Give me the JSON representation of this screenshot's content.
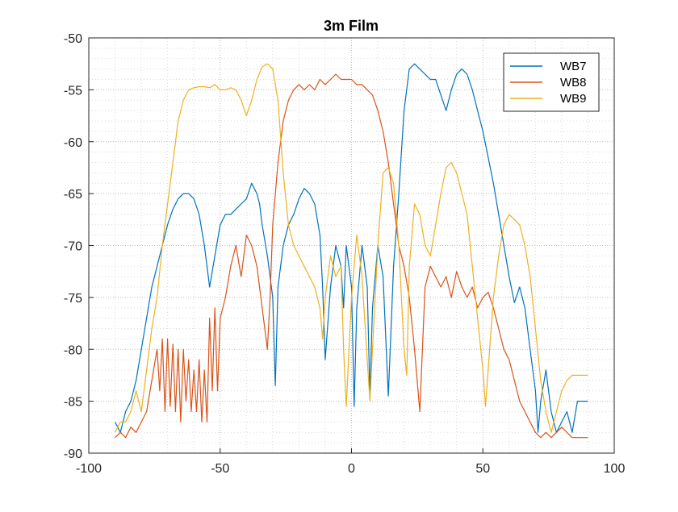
{
  "figure": {
    "title": "3m Film"
  },
  "chart_data": {
    "type": "line",
    "title": "3m Film",
    "xlabel": "",
    "ylabel": "",
    "xlim": [
      -100,
      100
    ],
    "ylim": [
      -90,
      -50
    ],
    "xticks": [
      -100,
      -50,
      0,
      50,
      100
    ],
    "yticks": [
      -90,
      -85,
      -80,
      -75,
      -70,
      -65,
      -60,
      -55,
      -50
    ],
    "xtick_labels": [
      "-100",
      "-50",
      "0",
      "50",
      "100"
    ],
    "ytick_labels": [
      "-90",
      "-85",
      "-80",
      "-75",
      "-70",
      "-65",
      "-60",
      "-55",
      "-50"
    ],
    "grid": "major and minor, dotted",
    "legend_position": "top-right",
    "series": [
      {
        "name": "WB7",
        "color": "#0072BD",
        "x": [
          -90,
          -88,
          -86,
          -84,
          -82,
          -80,
          -78,
          -76,
          -74,
          -72,
          -70,
          -68,
          -66,
          -64,
          -62,
          -60,
          -58,
          -56,
          -54,
          -52,
          -50,
          -48,
          -46,
          -44,
          -42,
          -40,
          -38,
          -36,
          -35,
          -34,
          -32,
          -30,
          -29,
          -28,
          -26,
          -24,
          -22,
          -20,
          -18,
          -16,
          -14,
          -12,
          -11,
          -10,
          -8,
          -6,
          -4,
          -3,
          -2,
          0,
          1,
          2,
          4,
          6,
          7,
          8,
          10,
          12,
          14,
          16,
          18,
          20,
          22,
          24,
          26,
          28,
          30,
          32,
          34,
          36,
          38,
          40,
          42,
          44,
          46,
          48,
          50,
          52,
          54,
          56,
          58,
          60,
          62,
          64,
          66,
          68,
          70,
          71,
          72,
          74,
          76,
          78,
          80,
          82,
          84,
          86,
          88,
          90
        ],
        "y": [
          -87,
          -88,
          -86,
          -85,
          -83,
          -80,
          -77,
          -74,
          -72,
          -70,
          -68,
          -66.5,
          -65.5,
          -65,
          -65,
          -65.5,
          -67,
          -70,
          -74,
          -71,
          -68,
          -67,
          -67,
          -66.5,
          -66,
          -65.5,
          -64,
          -65,
          -66,
          -68,
          -71,
          -75,
          -83.5,
          -74,
          -70,
          -68,
          -67,
          -65.5,
          -64.5,
          -65,
          -66,
          -69,
          -74,
          -81,
          -74,
          -70,
          -72,
          -76,
          -70,
          -74,
          -85.5,
          -76,
          -70,
          -74,
          -84.5,
          -76,
          -70,
          -73,
          -84.5,
          -72,
          -65,
          -57,
          -53,
          -52.5,
          -53,
          -53.5,
          -54,
          -54,
          -55.5,
          -57,
          -55,
          -53.5,
          -53,
          -53.5,
          -55,
          -57,
          -59,
          -61.5,
          -64,
          -67,
          -70,
          -73,
          -75.5,
          -74,
          -76,
          -80,
          -84,
          -88,
          -85,
          -82,
          -86,
          -88,
          -87,
          -86,
          -88,
          -85,
          -85,
          -85
        ]
      },
      {
        "name": "WB8",
        "color": "#D95319",
        "x": [
          -90,
          -88,
          -86,
          -84,
          -82,
          -80,
          -78,
          -76,
          -74,
          -73,
          -72,
          -71,
          -70,
          -69,
          -68,
          -67,
          -66,
          -65,
          -64,
          -63,
          -62,
          -61,
          -60,
          -59,
          -58,
          -57,
          -56,
          -55,
          -54,
          -53,
          -52,
          -51,
          -50,
          -48,
          -46,
          -44,
          -42,
          -40,
          -38,
          -36,
          -34,
          -32,
          -31,
          -30,
          -28,
          -26,
          -24,
          -22,
          -20,
          -18,
          -16,
          -14,
          -12,
          -10,
          -8,
          -6,
          -4,
          -2,
          0,
          2,
          4,
          6,
          8,
          10,
          12,
          14,
          16,
          18,
          20,
          22,
          24,
          26,
          28,
          29,
          30,
          32,
          34,
          36,
          38,
          40,
          42,
          44,
          46,
          48,
          50,
          52,
          54,
          56,
          58,
          60,
          62,
          64,
          66,
          68,
          70,
          72,
          74,
          76,
          78,
          80,
          82,
          84,
          86,
          88,
          90
        ],
        "y": [
          -88.5,
          -88,
          -88.5,
          -87.5,
          -88,
          -87,
          -86,
          -83,
          -80,
          -84,
          -79,
          -86,
          -79,
          -85.5,
          -79.5,
          -86,
          -80,
          -87,
          -80,
          -85,
          -81,
          -86,
          -82,
          -86,
          -81,
          -87,
          -82,
          -87,
          -77,
          -84,
          -76,
          -84,
          -77,
          -75,
          -72,
          -70,
          -73,
          -69,
          -70,
          -72,
          -76,
          -80,
          -75,
          -68,
          -62,
          -58,
          -56,
          -55,
          -54.5,
          -55,
          -54.5,
          -55,
          -54,
          -54.5,
          -54,
          -53.5,
          -54,
          -54,
          -54,
          -54.5,
          -54.5,
          -55,
          -55.5,
          -57,
          -59,
          -62,
          -66,
          -70,
          -72,
          -75,
          -80,
          -86,
          -74,
          -73,
          -72,
          -73,
          -74,
          -73,
          -75,
          -72.5,
          -74,
          -75,
          -74,
          -76,
          -75,
          -74.5,
          -76,
          -78,
          -80,
          -81,
          -83,
          -85,
          -86,
          -87,
          -88,
          -88.5,
          -88,
          -88.5,
          -88,
          -87.5,
          -88,
          -88.5,
          -88.5,
          -88.5,
          -88.5
        ]
      },
      {
        "name": "WB9",
        "color": "#EDB120",
        "x": [
          -90,
          -88,
          -86,
          -84,
          -82,
          -80,
          -78,
          -76,
          -74,
          -72,
          -70,
          -68,
          -66,
          -64,
          -62,
          -60,
          -58,
          -56,
          -54,
          -52,
          -50,
          -48,
          -46,
          -44,
          -42,
          -40,
          -38,
          -36,
          -34,
          -32,
          -30,
          -28,
          -26,
          -24,
          -22,
          -20,
          -18,
          -16,
          -14,
          -12,
          -11,
          -10,
          -8,
          -6,
          -4,
          -3,
          -2,
          0,
          2,
          4,
          6,
          7,
          8,
          10,
          12,
          14,
          16,
          18,
          20,
          21,
          22,
          24,
          26,
          28,
          30,
          32,
          34,
          36,
          38,
          40,
          42,
          44,
          46,
          48,
          50,
          51,
          52,
          54,
          56,
          58,
          60,
          62,
          64,
          66,
          68,
          70,
          72,
          74,
          76,
          78,
          80,
          82,
          84,
          86,
          88,
          90
        ],
        "y": [
          -88,
          -87,
          -87,
          -86,
          -84,
          -86,
          -82,
          -78,
          -75,
          -70,
          -66,
          -62,
          -58,
          -56,
          -55,
          -54.8,
          -54.7,
          -54.7,
          -54.8,
          -54.5,
          -55,
          -55,
          -54.8,
          -55,
          -56,
          -57.5,
          -56,
          -54,
          -52.8,
          -52.5,
          -53,
          -56,
          -63,
          -68,
          -70,
          -71,
          -72,
          -73,
          -74,
          -76,
          -79,
          -75,
          -71,
          -73,
          -72,
          -80,
          -85.5,
          -75,
          -69,
          -73,
          -81,
          -85,
          -80,
          -70,
          -63,
          -62.5,
          -64,
          -70,
          -80,
          -82.5,
          -72,
          -66,
          -67,
          -70,
          -71,
          -68,
          -65,
          -62.5,
          -62,
          -63,
          -65,
          -67,
          -72,
          -77,
          -82,
          -85.5,
          -82,
          -75,
          -71,
          -68,
          -67,
          -67.5,
          -68,
          -70,
          -73,
          -78,
          -83,
          -86,
          -88,
          -86,
          -84,
          -83,
          -82.5,
          -82.5,
          -82.5,
          -82.5
        ]
      }
    ]
  }
}
